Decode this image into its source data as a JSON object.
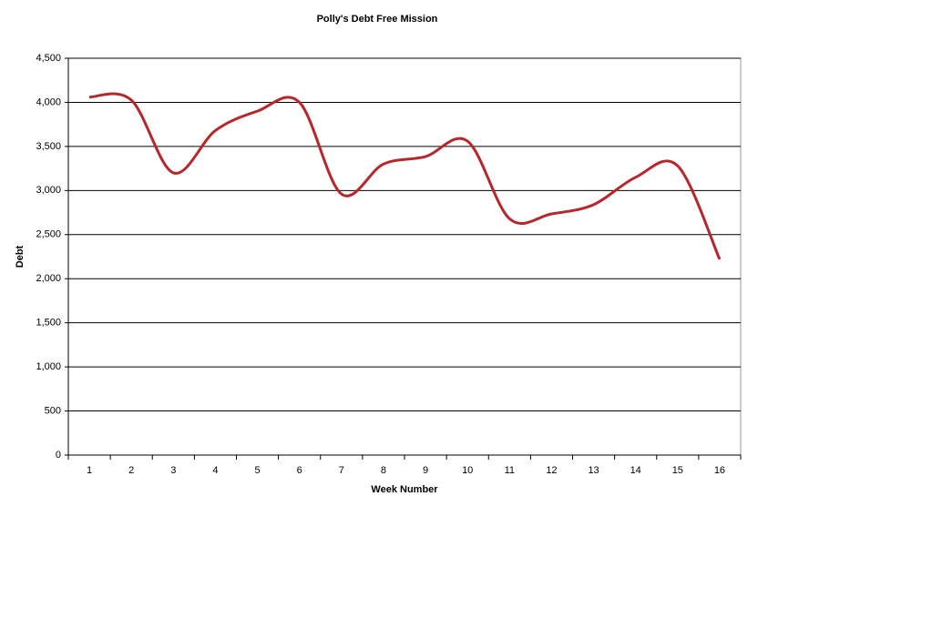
{
  "chart_data": {
    "type": "line",
    "title": "Polly's Debt Free Mission",
    "x_label": "Week Number",
    "y_label": "Debt",
    "categories": [
      "1",
      "2",
      "3",
      "4",
      "5",
      "6",
      "7",
      "8",
      "9",
      "10",
      "11",
      "12",
      "13",
      "14",
      "15",
      "16"
    ],
    "series": [
      {
        "name": "Debt",
        "color": "#b8262b",
        "values": [
          4060,
          4025,
          3200,
          3680,
          3900,
          4000,
          2960,
          3300,
          3385,
          3560,
          2680,
          2735,
          2840,
          3150,
          3280,
          2220
        ]
      }
    ],
    "ylim": [
      0,
      4500
    ],
    "yticks": [
      0,
      500,
      {
        "value": 1000,
        "label": "1,000"
      },
      {
        "value": 1500,
        "label": "1,500"
      },
      {
        "value": 2000,
        "label": "2,000"
      },
      {
        "value": 2500,
        "label": "2,500"
      },
      {
        "value": 3000,
        "label": "3,000"
      },
      {
        "value": 3500,
        "label": "3,500"
      },
      {
        "value": 4000,
        "label": "4,000"
      },
      {
        "value": 4500,
        "label": "4,500"
      }
    ],
    "grid": true
  }
}
